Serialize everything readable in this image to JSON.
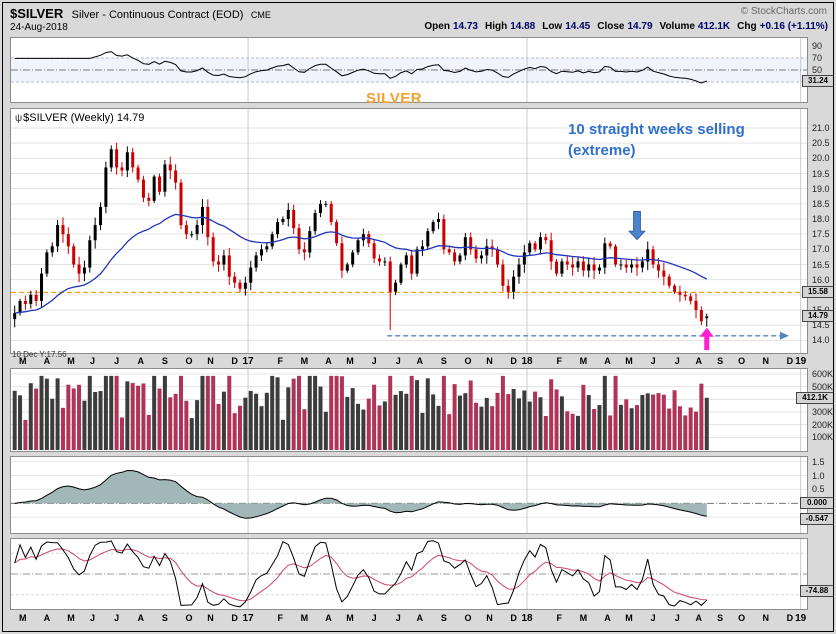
{
  "header": {
    "symbol": "$SILVER",
    "name": "Silver - Continuous Contract (EOD)",
    "exchange": "CME",
    "copyright": "© StockCharts.com",
    "date": "24-Aug-2018",
    "quote": [
      {
        "label": "Open",
        "value": "14.73"
      },
      {
        "label": "High",
        "value": "14.88"
      },
      {
        "label": "Low",
        "value": "14.45"
      },
      {
        "label": "Close",
        "value": "14.79"
      },
      {
        "label": "Volume",
        "value": "412.1K"
      },
      {
        "label": "Chg",
        "value": "+0.16 (+1.11%)"
      }
    ]
  },
  "annotations": {
    "legend_icon": "ψ",
    "chart_label": "$SILVER (Weekly) 14.79",
    "silver_label": "SILVER",
    "selling_note_line1": "10 straight weeks selling",
    "selling_note_line2": "(extreme)",
    "crosshair_note": "10 Dec Y:17.56"
  },
  "colors": {
    "up_candle": "#000000",
    "down_candle": "#cc0000",
    "ma_line": "#2233bb",
    "resistance": "#ff9900",
    "support_arrow": "#5585c0",
    "note_text": "#3070cc",
    "silver_label": "#f0a030",
    "magenta_arrow": "#ff1fd2",
    "blue_arrow": "#4a84cc",
    "vol_up": "#3c3c3c",
    "vol_down": "#b03358",
    "osc_fill": "#9db4b4",
    "wpr_signal": "#cc4466"
  },
  "chart_data": {
    "type": "candlestick",
    "title": "$SILVER (Weekly)",
    "x_axis": {
      "total_slots": 148,
      "year_boundaries": [
        44,
        96,
        147
      ],
      "months": [
        {
          "l": "M",
          "w": 4
        },
        {
          "l": "A",
          "w": 5
        },
        {
          "l": "M",
          "w": 4
        },
        {
          "l": "J",
          "w": 4
        },
        {
          "l": "J",
          "w": 5
        },
        {
          "l": "A",
          "w": 4
        },
        {
          "l": "S",
          "w": 5
        },
        {
          "l": "O",
          "w": 4
        },
        {
          "l": "N",
          "w": 4
        },
        {
          "l": "D",
          "w": 5
        },
        {
          "l": "17",
          "w": 4,
          "y": 1
        },
        {
          "l": "F",
          "w": 4
        },
        {
          "l": "M",
          "w": 5
        },
        {
          "l": "A",
          "w": 4
        },
        {
          "l": "M",
          "w": 4
        },
        {
          "l": "J",
          "w": 5
        },
        {
          "l": "J",
          "w": 4
        },
        {
          "l": "A",
          "w": 4
        },
        {
          "l": "S",
          "w": 5
        },
        {
          "l": "O",
          "w": 4
        },
        {
          "l": "N",
          "w": 4
        },
        {
          "l": "D",
          "w": 5
        },
        {
          "l": "18",
          "w": 4,
          "y": 1
        },
        {
          "l": "F",
          "w": 4
        },
        {
          "l": "M",
          "w": 5
        },
        {
          "l": "A",
          "w": 4
        },
        {
          "l": "M",
          "w": 4
        },
        {
          "l": "J",
          "w": 5
        },
        {
          "l": "J",
          "w": 4
        },
        {
          "l": "A",
          "w": 4
        },
        {
          "l": "S",
          "w": 4
        },
        {
          "l": "O",
          "w": 4
        },
        {
          "l": "N",
          "w": 5
        },
        {
          "l": "D",
          "w": 4
        },
        {
          "l": "19",
          "w": 1,
          "y": 1
        }
      ]
    },
    "price": {
      "ylim": [
        13.55,
        21.66
      ],
      "ticks": [
        21.0,
        20.5,
        20.0,
        19.5,
        19.0,
        18.5,
        18.0,
        17.5,
        17.0,
        16.5,
        16.0,
        15.5,
        15.0,
        14.5,
        14.0
      ],
      "ma_period": 30,
      "closes": [
        14.9,
        15.3,
        15.2,
        15.5,
        15.3,
        16.2,
        16.9,
        17.1,
        17.8,
        17.5,
        17.1,
        16.5,
        16.2,
        16.4,
        17.3,
        17.8,
        18.4,
        19.7,
        20.3,
        19.7,
        19.6,
        20.2,
        19.7,
        19.3,
        18.7,
        18.6,
        19.4,
        18.9,
        19.8,
        19.6,
        19.2,
        17.8,
        17.5,
        17.5,
        17.8,
        18.4,
        17.4,
        16.6,
        16.5,
        16.8,
        16.1,
        15.9,
        15.7,
        15.9,
        16.4,
        16.8,
        17.0,
        17.1,
        17.5,
        17.9,
        18.0,
        18.3,
        17.7,
        17.0,
        16.9,
        17.6,
        18.2,
        18.5,
        18.5,
        17.9,
        17.2,
        16.3,
        16.5,
        16.9,
        17.3,
        17.5,
        17.2,
        16.7,
        16.6,
        16.6,
        15.6,
        15.9,
        16.5,
        16.8,
        16.2,
        17.0,
        17.1,
        17.6,
        17.9,
        18.0,
        17.0,
        16.9,
        16.6,
        16.8,
        17.4,
        17.0,
        16.7,
        16.8,
        17.1,
        17.0,
        16.5,
        15.8,
        15.6,
        16.1,
        16.5,
        16.9,
        17.2,
        17.0,
        17.4,
        17.3,
        16.6,
        16.2,
        16.6,
        16.5,
        16.4,
        16.6,
        16.3,
        16.5,
        16.3,
        16.4,
        17.2,
        17.1,
        16.5,
        16.5,
        16.4,
        16.5,
        16.4,
        16.6,
        17.0,
        16.5,
        16.3,
        16.1,
        15.8,
        15.6,
        15.5,
        15.45,
        15.3,
        15.0,
        14.63,
        14.79
      ],
      "special_lows": {
        "70": 14.34
      },
      "last_bar": {
        "open": 14.73,
        "high": 14.88,
        "low": 14.45,
        "close": 14.79
      },
      "resistance": {
        "value": 15.58,
        "label": "15.58"
      },
      "support": {
        "value": 14.15,
        "start_week": 70
      },
      "last": {
        "value": 14.79,
        "label": "14.79"
      },
      "down_arrow_week": 116,
      "up_arrow_week": 129
    },
    "rsi": {
      "period": 14,
      "ticks": [
        90,
        70,
        50,
        30
      ],
      "band": [
        30,
        70
      ],
      "mid": 50,
      "last": {
        "value": 31.24,
        "label": "31.24"
      }
    },
    "volume": {
      "ticks": [
        600,
        500,
        400,
        300,
        200,
        100
      ],
      "unit": "K",
      "ylim": [
        0,
        600
      ],
      "last": {
        "value": 412.1,
        "label": "412.1K"
      }
    },
    "osc": {
      "fast": 12,
      "slow": 26,
      "ticks": [
        1.5,
        1.0,
        0.5,
        -0.5
      ],
      "ylim": [
        -1.1,
        1.7
      ],
      "zero": {
        "value": 0,
        "label": "0.000"
      },
      "last": {
        "value": -0.547,
        "label": "-0.547"
      }
    },
    "wpr": {
      "period": 14,
      "signal": 9,
      "ylim": [
        -102,
        2
      ],
      "mid": -50,
      "dashed_levels": [
        -20,
        -80
      ],
      "last": {
        "value": -74.88,
        "label": "-74.88"
      }
    }
  }
}
